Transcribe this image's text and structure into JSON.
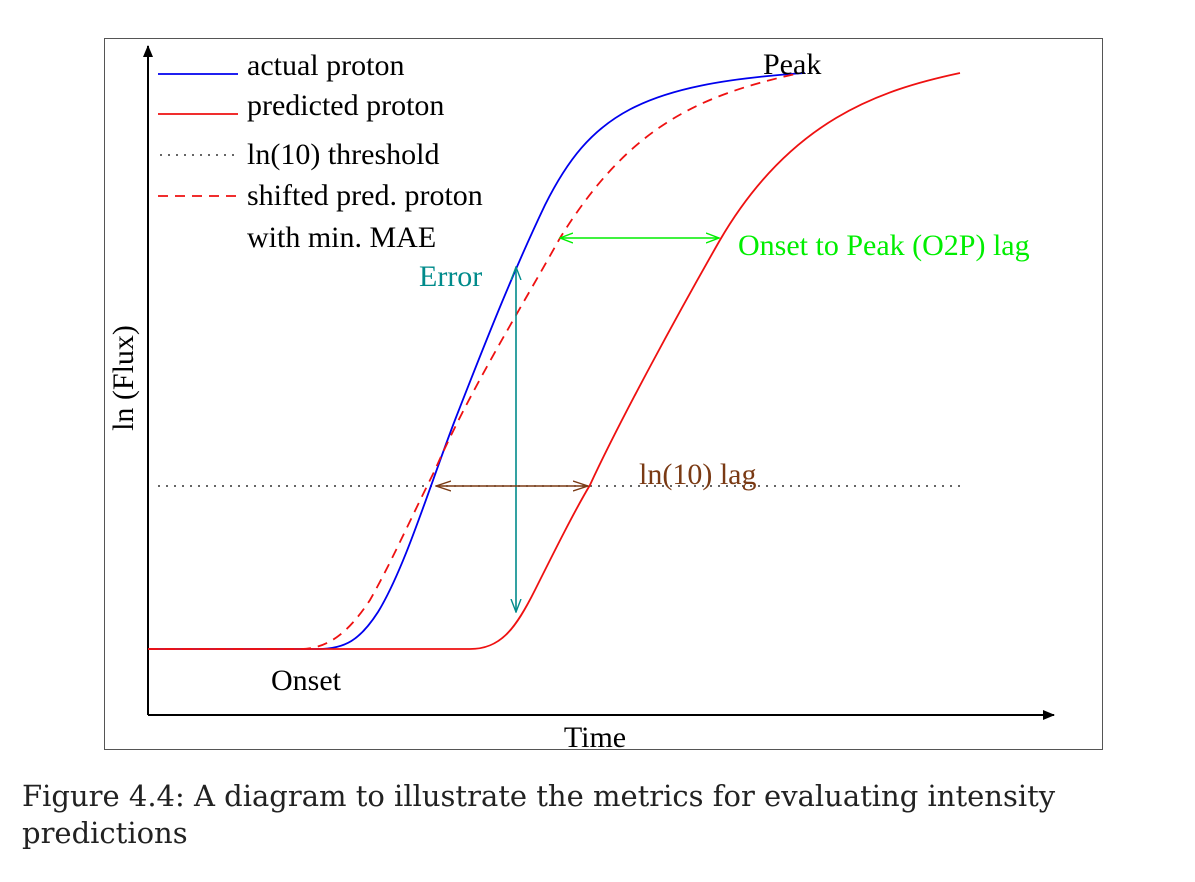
{
  "diagram": {
    "axes": {
      "x_label": "Time",
      "y_label": "ln (Flux)"
    },
    "legend": [
      {
        "label": "actual proton",
        "style": "solid",
        "color": "#0000ee"
      },
      {
        "label": "predicted proton",
        "style": "solid",
        "color": "#ee1111"
      },
      {
        "label": "ln(10) threshold",
        "style": "dotted",
        "color": "#333333"
      },
      {
        "label": "shifted pred. proton",
        "style": "dashed",
        "color": "#ee1111"
      },
      {
        "label": "with min. MAE",
        "style": "none",
        "color": "#000000"
      }
    ],
    "annotations": {
      "peak": "Peak",
      "onset": "Onset",
      "error": "Error",
      "o2p_lag": "Onset to Peak (O2P) lag",
      "ln10_lag": "ln(10) lag"
    },
    "colors": {
      "actual": "#0000ee",
      "predicted": "#ee1111",
      "error": "#008b8b",
      "o2p": "#00ee00",
      "lag": "#7a3a14",
      "frame": "#555555"
    }
  },
  "caption": "Figure 4.4: A diagram to illustrate the metrics for evaluating intensity predictions"
}
